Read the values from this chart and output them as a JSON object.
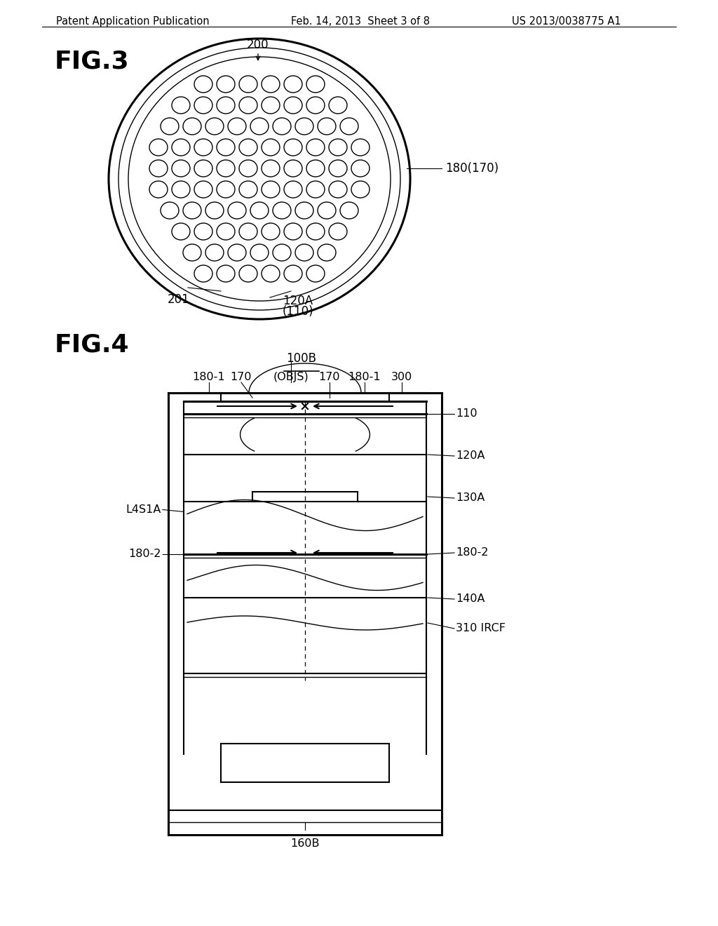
{
  "bg_color": "#ffffff",
  "header_left": "Patent Application Publication",
  "header_mid": "Feb. 14, 2013  Sheet 3 of 8",
  "header_right": "US 2013/0038775 A1"
}
